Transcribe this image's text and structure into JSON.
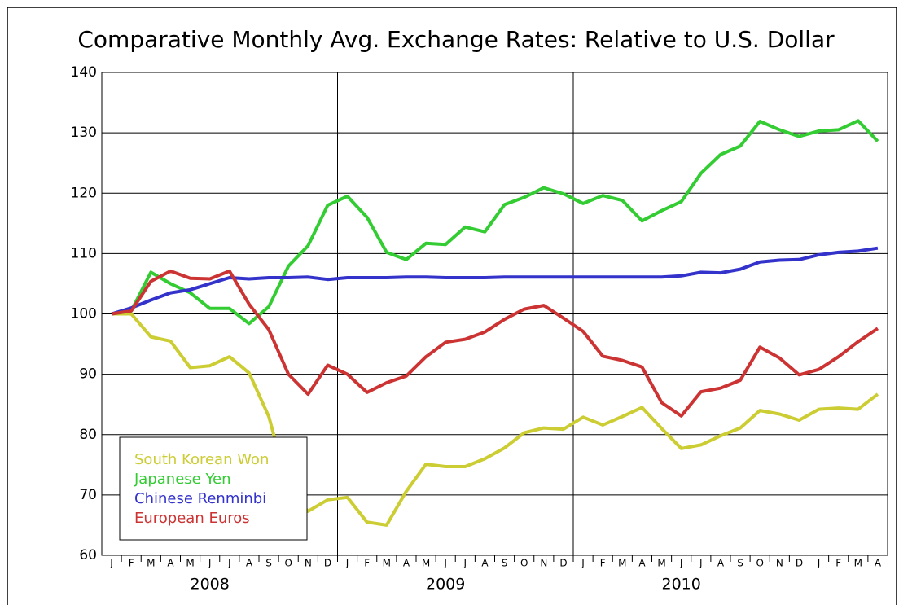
{
  "chart_data": {
    "type": "line",
    "title": "Comparative Monthly Avg. Exchange Rates: Relative to U.S. Dollar",
    "categories": [
      "J",
      "F",
      "M",
      "A",
      "M",
      "J",
      "J",
      "A",
      "S",
      "O",
      "N",
      "D",
      "J",
      "F",
      "M",
      "A",
      "M",
      "J",
      "J",
      "A",
      "S",
      "O",
      "N",
      "D",
      "J",
      "F",
      "M",
      "A",
      "M",
      "J",
      "J",
      "A",
      "S",
      "O",
      "N",
      "D",
      "J",
      "F",
      "M",
      "A"
    ],
    "years": [
      "2008",
      "2009",
      "2010"
    ],
    "ylim": [
      60,
      140
    ],
    "yticks": [
      60,
      70,
      80,
      90,
      100,
      110,
      120,
      130,
      140
    ],
    "grid": true,
    "legend": "lower-left",
    "series": [
      {
        "name": "South Korean Won",
        "color": "#cccc33",
        "values": [
          100,
          100,
          96.2,
          95.5,
          91.1,
          91.4,
          92.9,
          90.2,
          83,
          71,
          67.3,
          69.2,
          69.6,
          65.5,
          65,
          70.6,
          75.1,
          74.7,
          74.7,
          76,
          77.8,
          80.3,
          81.1,
          80.9,
          82.9,
          81.6,
          83,
          84.5,
          81,
          77.7,
          78.3,
          79.8,
          81.1,
          84,
          83.4,
          82.4,
          84.2,
          84.4,
          84.2,
          86.7
        ]
      },
      {
        "name": "Japanese Yen",
        "color": "#33cc33",
        "values": [
          100,
          100.5,
          106.9,
          105,
          103.5,
          100.9,
          100.9,
          98.4,
          101.2,
          107.9,
          111.3,
          118,
          119.5,
          116,
          110.2,
          109,
          111.7,
          111.5,
          114.4,
          113.6,
          118.1,
          119.3,
          120.9,
          119.9,
          118.3,
          119.6,
          118.8,
          115.4,
          117.1,
          118.6,
          123.3,
          126.4,
          127.8,
          131.9,
          130.5,
          129.4,
          130.3,
          130.5,
          132,
          128.6
        ]
      },
      {
        "name": "Chinese Renminbi",
        "color": "#3333cc",
        "values": [
          100,
          101,
          102.3,
          103.5,
          104,
          105,
          106,
          105.8,
          106,
          106,
          106.1,
          105.7,
          106,
          106,
          106,
          106.1,
          106.1,
          106,
          106,
          106,
          106.1,
          106.1,
          106.1,
          106.1,
          106.1,
          106.1,
          106.1,
          106.1,
          106.1,
          106.3,
          106.9,
          106.8,
          107.4,
          108.6,
          108.9,
          109,
          109.8,
          110.2,
          110.4,
          110.9
        ]
      },
      {
        "name": "European Euros",
        "color": "#cc3333",
        "values": [
          100,
          100.5,
          105.4,
          107.1,
          105.9,
          105.8,
          107.1,
          101.6,
          97.4,
          90,
          86.7,
          91.5,
          90,
          87,
          88.6,
          89.7,
          92.9,
          95.3,
          95.8,
          97,
          99.1,
          100.8,
          101.4,
          99.3,
          97.1,
          93,
          92.3,
          91.2,
          85.3,
          83.1,
          87.1,
          87.7,
          89,
          94.5,
          92.7,
          89.9,
          90.8,
          92.9,
          95.4,
          97.6
        ]
      }
    ]
  }
}
